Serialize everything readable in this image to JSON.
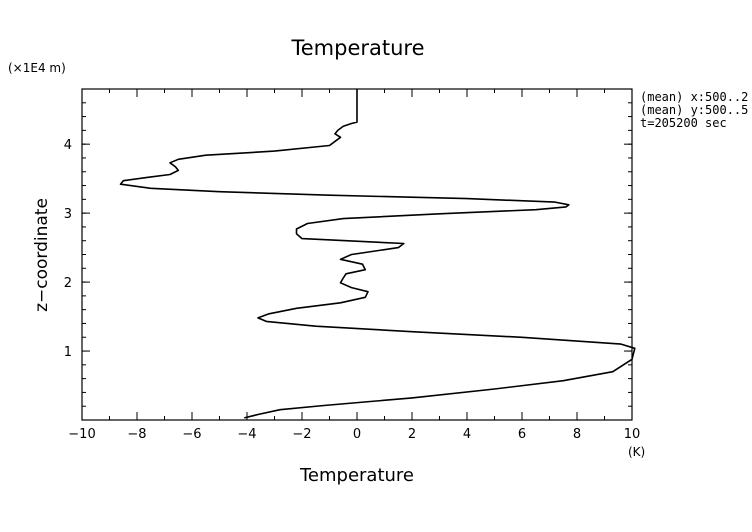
{
  "chart_data": {
    "type": "line",
    "title": "Temperature",
    "xlabel": "Temperature",
    "ylabel": "z−coordinate",
    "x_unit": "(K)",
    "y_unit": "(×1E4 m)",
    "xlim": [
      -10,
      10
    ],
    "ylim": [
      0,
      4.8
    ],
    "xticks": [
      -10,
      -8,
      -6,
      -4,
      -2,
      0,
      2,
      4,
      6,
      8,
      10
    ],
    "xtick_labels": [
      "−10",
      "−8",
      "−6",
      "−4",
      "−2",
      "0",
      "2",
      "4",
      "6",
      "8",
      "10"
    ],
    "yticks": [
      1,
      2,
      3,
      4
    ],
    "ytick_labels": [
      "1",
      "2",
      "3",
      "4"
    ],
    "grid": false,
    "annotations": [
      "(mean) x:500..2",
      "(mean) y:500..5",
      "t=205200 sec"
    ],
    "series": [
      {
        "color": "#000000",
        "x": [
          -4.1,
          -3.6,
          -2.8,
          -1.2,
          2.0,
          5.0,
          7.5,
          9.3,
          10.0,
          10.1,
          9.6,
          6.0,
          2.0,
          -1.5,
          -3.3,
          -3.6,
          -3.2,
          -2.2,
          -0.6,
          0.3,
          0.4,
          -0.2,
          -0.6,
          -0.5,
          -0.4,
          0.3,
          0.2,
          -0.6,
          -0.2,
          1.5,
          1.7,
          -0.4,
          -2.0,
          -2.2,
          -2.2,
          -1.8,
          -0.5,
          3.0,
          6.5,
          7.6,
          7.7,
          7.2,
          4.0,
          -1.0,
          -5.0,
          -7.5,
          -8.6,
          -8.5,
          -7.6,
          -6.8,
          -6.5,
          -6.6,
          -6.8,
          -6.5,
          -5.5,
          -3.0,
          -1.0,
          -0.7,
          -0.6,
          -0.8,
          -0.7,
          -0.5,
          -0.2,
          0.0,
          0.0,
          0.0,
          0.0,
          0.0
        ],
        "y": [
          0.03,
          0.08,
          0.15,
          0.21,
          0.32,
          0.45,
          0.57,
          0.7,
          0.88,
          1.04,
          1.1,
          1.2,
          1.28,
          1.36,
          1.43,
          1.48,
          1.54,
          1.62,
          1.7,
          1.78,
          1.86,
          1.92,
          1.99,
          2.06,
          2.12,
          2.18,
          2.26,
          2.33,
          2.4,
          2.5,
          2.56,
          2.6,
          2.63,
          2.7,
          2.77,
          2.85,
          2.92,
          2.99,
          3.05,
          3.09,
          3.12,
          3.16,
          3.21,
          3.26,
          3.31,
          3.36,
          3.42,
          3.47,
          3.52,
          3.56,
          3.62,
          3.67,
          3.73,
          3.78,
          3.84,
          3.9,
          3.98,
          4.07,
          4.1,
          4.15,
          4.2,
          4.26,
          4.3,
          4.32,
          4.4,
          4.55,
          4.7,
          4.8
        ]
      }
    ]
  }
}
